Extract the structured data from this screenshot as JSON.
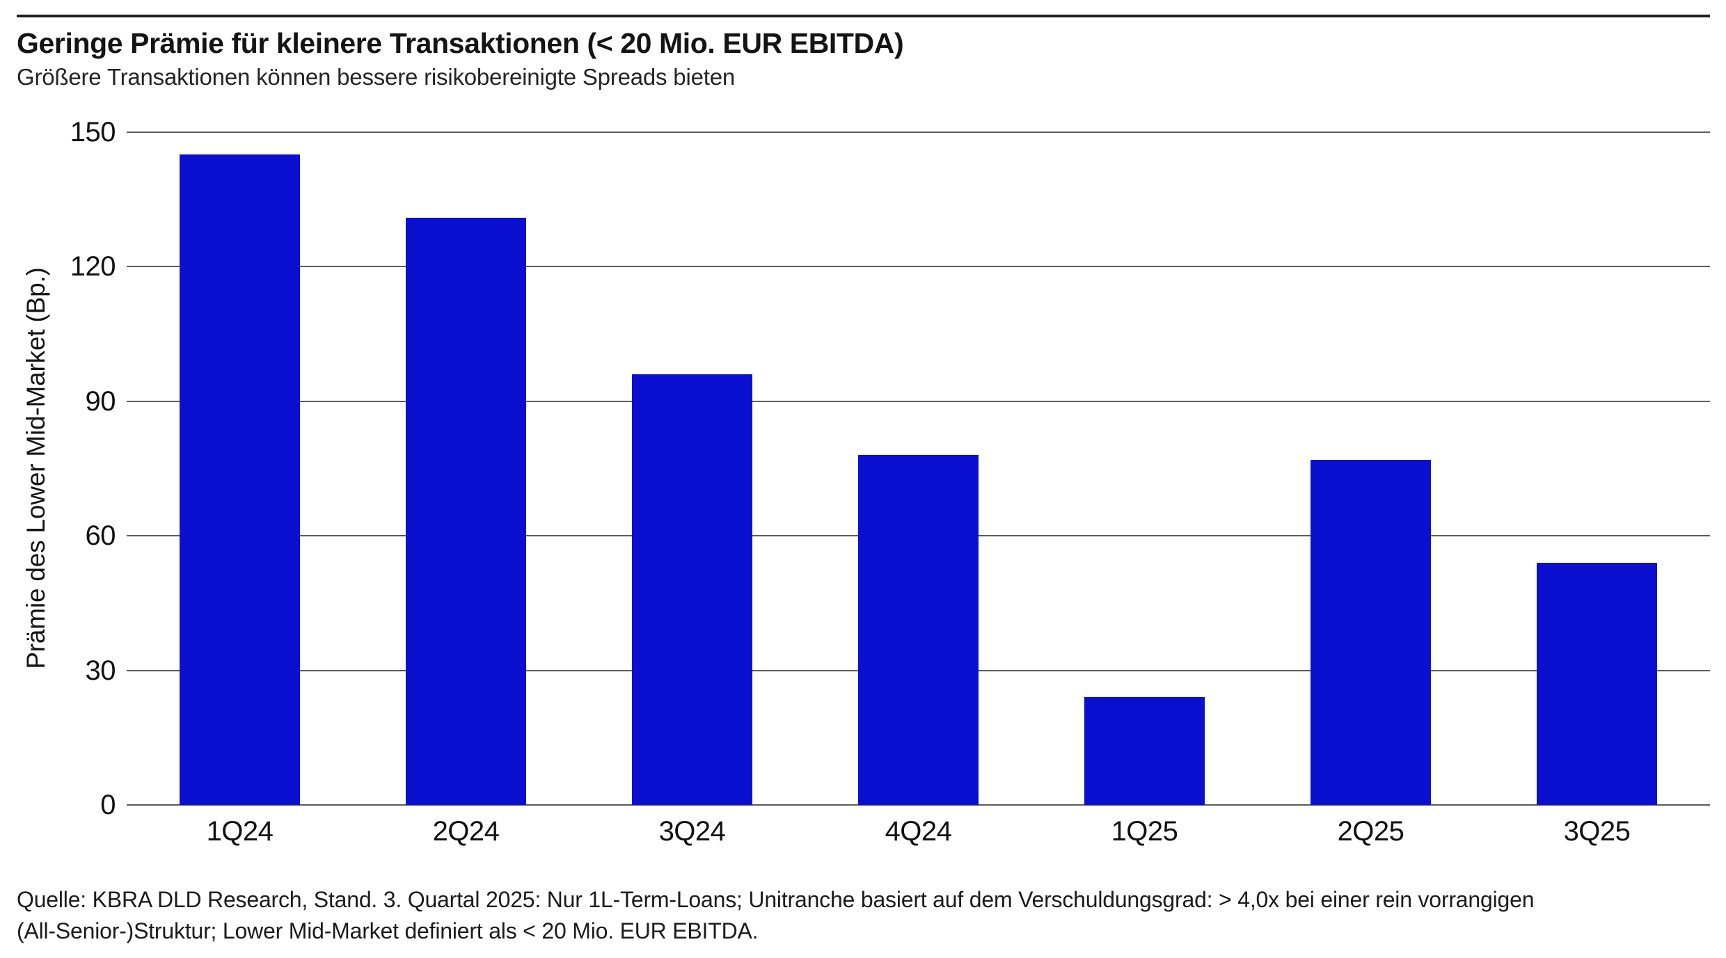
{
  "chart_data": {
    "type": "bar",
    "title": "Geringe Prämie für kleinere Transaktionen (< 20 Mio. EUR EBITDA)",
    "subtitle": "Größere Transaktionen können bessere risikobereinigte Spreads bieten",
    "categories": [
      "1Q24",
      "2Q24",
      "3Q24",
      "4Q24",
      "1Q25",
      "2Q25",
      "3Q25"
    ],
    "values": [
      145,
      131,
      96,
      78,
      24,
      77,
      54
    ],
    "xlabel": "",
    "ylabel": "Prämie des Lower Mid-Market (Bp.)",
    "ylim": [
      0,
      150
    ],
    "yticks": [
      0,
      30,
      60,
      90,
      120,
      150
    ],
    "grid": true,
    "legend": "none",
    "bar_color": "#0b10d0",
    "source_note_line1": "Quelle: KBRA DLD Research, Stand. 3. Quartal 2025: Nur 1L-Term-Loans; Unitranche basiert auf dem Verschuldungsgrad: > 4,0x bei einer rein vorrangigen",
    "source_note_line2": "(All-Senior-)Struktur; Lower Mid-Market definiert als < 20 Mio. EUR EBITDA."
  },
  "colors": {
    "accent_bar": "#0b10d0",
    "top_rule": "#231f20",
    "gridline": "#5c5c5c"
  }
}
